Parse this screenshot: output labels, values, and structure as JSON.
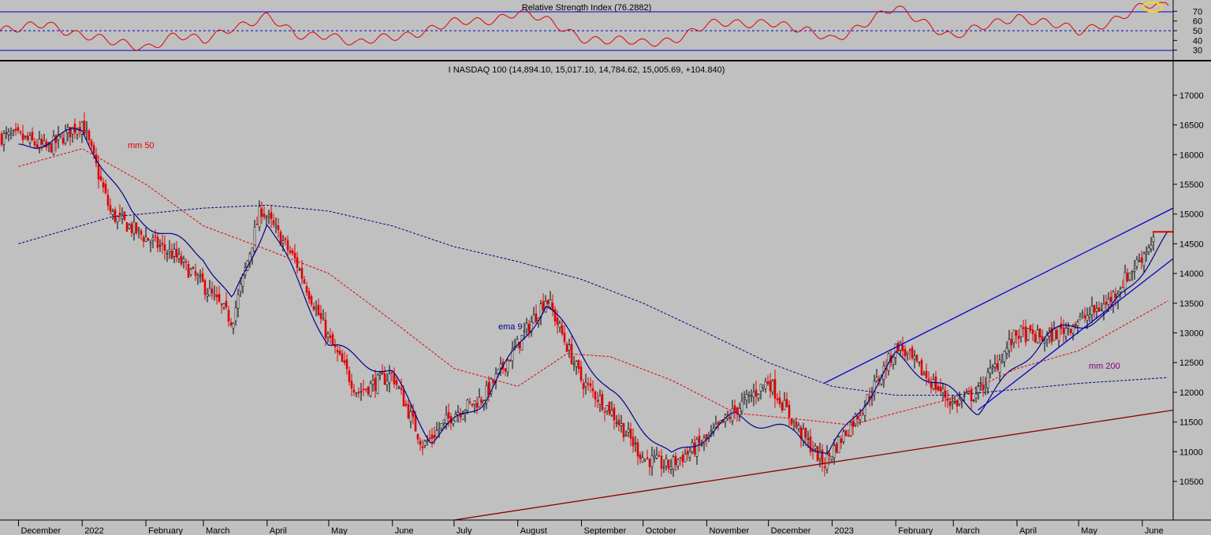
{
  "chart_data": [
    {
      "type": "line",
      "title": "Relative Strength Index (76.2882)",
      "ylim": [
        20,
        80
      ],
      "y_ticks": [
        "70",
        "60",
        "50",
        "40",
        "30"
      ],
      "reference_lines": [
        30,
        50,
        70
      ],
      "highlight": "yellow ellipse marks the latest RSI reading (overbought zone)",
      "series": [
        {
          "name": "",
          "color": "#e00000",
          "x": [
            "2021-12-01",
            "2021-12-15",
            "2022-01-01",
            "2022-01-15",
            "2022-02-01",
            "2022-02-15",
            "2022-03-01",
            "2022-03-15",
            "2022-04-01",
            "2022-04-15",
            "2022-05-01",
            "2022-05-15",
            "2022-06-01",
            "2022-06-15",
            "2022-07-01",
            "2022-07-15",
            "2022-08-01",
            "2022-08-15",
            "2022-09-01",
            "2022-09-15",
            "2022-10-01",
            "2022-10-15",
            "2022-11-01",
            "2022-11-15",
            "2022-12-01",
            "2022-12-15",
            "2023-01-01",
            "2023-01-15",
            "2023-02-01",
            "2023-02-15",
            "2023-03-01",
            "2023-03-15",
            "2023-04-01",
            "2023-04-15",
            "2023-05-01",
            "2023-05-15",
            "2023-06-01",
            "2023-06-14"
          ],
          "values": [
            50,
            58,
            46,
            37,
            34,
            45,
            38,
            55,
            64,
            44,
            48,
            35,
            44,
            50,
            57,
            60,
            70,
            59,
            44,
            40,
            36,
            42,
            55,
            57,
            61,
            50,
            42,
            56,
            72,
            60,
            44,
            52,
            66,
            58,
            48,
            60,
            74,
            76
          ]
        }
      ]
    },
    {
      "type": "line",
      "title": "I NASDAQ 100 (14,894.10, 15,017.10, 14,784.62, 15,005.69, +104.840)",
      "ylim": [
        9850,
        17250
      ],
      "y_ticks": [
        "17000",
        "16500",
        "16000",
        "15500",
        "15000",
        "14500",
        "14000",
        "13500",
        "13000",
        "12500",
        "12000",
        "11500",
        "11000",
        "10500"
      ],
      "x_ticks": [
        "December",
        "2022",
        "February",
        "March",
        "April",
        "May",
        "June",
        "July",
        "August",
        "September",
        "October",
        "November",
        "December",
        "2023",
        "February",
        "March",
        "April",
        "May",
        "June"
      ],
      "candles_note": "daily candlesticks; red = down day, black/white = up day",
      "series": [
        {
          "name": "",
          "color": "#000000",
          "x": [
            "2021-12-01",
            "2021-12-15",
            "2022-01-01",
            "2022-01-15",
            "2022-02-01",
            "2022-02-15",
            "2022-03-01",
            "2022-03-15",
            "2022-03-29",
            "2022-04-15",
            "2022-05-01",
            "2022-05-15",
            "2022-06-01",
            "2022-06-16",
            "2022-07-01",
            "2022-07-15",
            "2022-08-01",
            "2022-08-15",
            "2022-09-01",
            "2022-09-15",
            "2022-10-01",
            "2022-10-13",
            "2022-11-01",
            "2022-11-15",
            "2022-12-01",
            "2022-12-15",
            "2022-12-28",
            "2023-01-15",
            "2023-02-02",
            "2023-02-15",
            "2023-03-01",
            "2023-03-13",
            "2023-04-01",
            "2023-04-15",
            "2023-05-01",
            "2023-05-15",
            "2023-06-01",
            "2023-06-14"
          ],
          "values": [
            16300,
            16100,
            16550,
            15000,
            14600,
            14300,
            13800,
            13200,
            15100,
            14200,
            12900,
            12000,
            12300,
            11100,
            11650,
            11900,
            12800,
            13600,
            12200,
            11700,
            10900,
            10750,
            11200,
            11700,
            12200,
            11400,
            10800,
            11700,
            12800,
            12300,
            11800,
            12000,
            13000,
            12900,
            13200,
            13500,
            14300,
            15005
          ]
        },
        {
          "name": "ema 9",
          "color": "#00008b",
          "x": [
            "2021-12-01",
            "2022-01-01",
            "2022-01-25",
            "2022-03-01",
            "2022-03-15",
            "2022-04-01",
            "2022-05-01",
            "2022-06-01",
            "2022-06-20",
            "2022-07-15",
            "2022-08-15",
            "2022-09-15",
            "2022-10-15",
            "2022-11-15",
            "2022-12-15",
            "2022-12-30",
            "2023-02-01",
            "2023-03-13",
            "2023-04-15",
            "2023-05-15",
            "2023-06-14"
          ],
          "values": [
            16100,
            16400,
            15000,
            14300,
            13500,
            14900,
            12800,
            12300,
            11200,
            11850,
            13500,
            12000,
            10900,
            11600,
            11300,
            10950,
            12600,
            11700,
            12950,
            13300,
            14650
          ]
        },
        {
          "name": "mm 50",
          "color": "#e00000",
          "x": [
            "2021-12-01",
            "2022-01-01",
            "2022-02-01",
            "2022-03-01",
            "2022-04-01",
            "2022-05-01",
            "2022-06-01",
            "2022-07-01",
            "2022-08-01",
            "2022-08-25",
            "2022-09-15",
            "2022-10-15",
            "2022-11-15",
            "2022-12-15",
            "2023-01-10",
            "2023-02-01",
            "2023-03-01",
            "2023-04-01",
            "2023-05-01",
            "2023-06-14"
          ],
          "values": [
            15800,
            16100,
            15500,
            14800,
            14400,
            14000,
            13200,
            12400,
            12100,
            12650,
            12600,
            12200,
            11650,
            11550,
            11450,
            11650,
            11900,
            12400,
            12700,
            13550
          ]
        },
        {
          "name": "mm 200",
          "color": "#000080",
          "x": [
            "2021-12-01",
            "2022-01-15",
            "2022-03-01",
            "2022-04-01",
            "2022-05-01",
            "2022-06-01",
            "2022-07-01",
            "2022-08-01",
            "2022-09-01",
            "2022-10-01",
            "2022-11-01",
            "2022-12-01",
            "2023-01-01",
            "2023-02-01",
            "2023-03-01",
            "2023-04-01",
            "2023-05-01",
            "2023-06-14"
          ],
          "values": [
            14500,
            14950,
            15100,
            15150,
            15050,
            14800,
            14450,
            14200,
            13900,
            13500,
            13000,
            12500,
            12100,
            11950,
            11950,
            12050,
            12150,
            12250
          ]
        }
      ],
      "trendlines": [
        {
          "color": "#0000cc",
          "from": [
            "2022-12-28",
            12150
          ],
          "to": [
            "2023-06-16",
            15100
          ]
        },
        {
          "color": "#0000cc",
          "from": [
            "2023-03-13",
            11700
          ],
          "to": [
            "2023-06-16",
            14250
          ]
        },
        {
          "color": "#8b0000",
          "from": [
            "2022-07-01",
            9850
          ],
          "to": [
            "2023-06-16",
            11700
          ]
        }
      ],
      "level_marker": {
        "color": "#e00000",
        "value": 14700
      }
    }
  ]
}
